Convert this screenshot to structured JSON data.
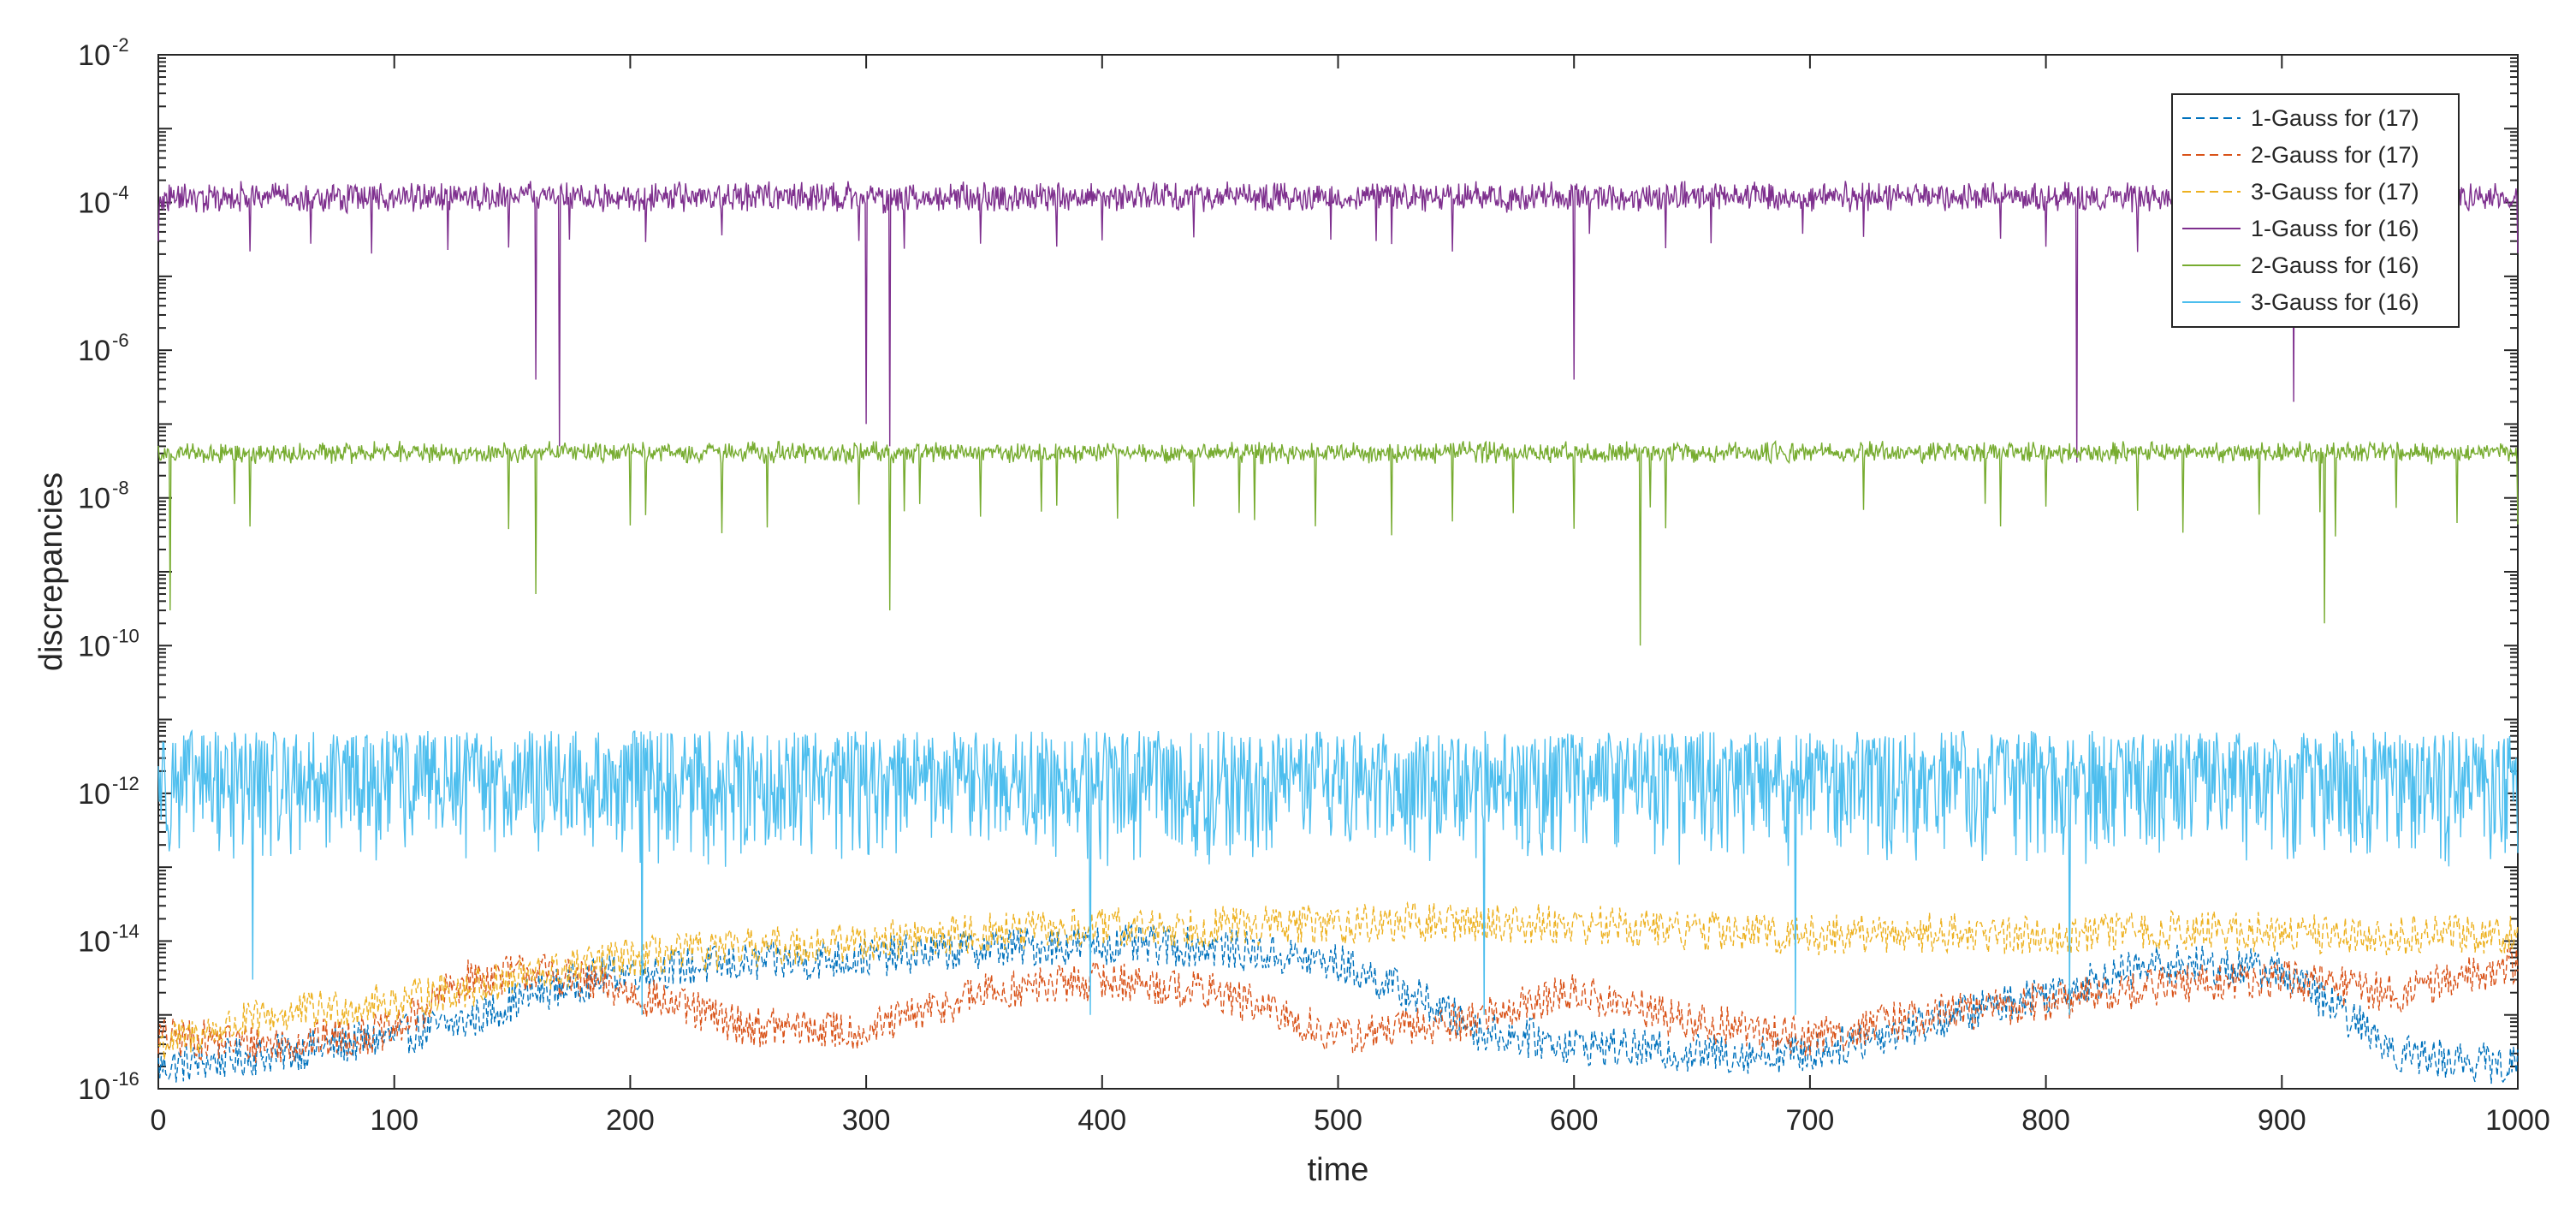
{
  "chart_data": {
    "type": "line",
    "title": "",
    "xlabel": "time",
    "ylabel": "discrepancies",
    "xlim": [
      0,
      1000
    ],
    "ylim": [
      1e-16,
      0.01
    ],
    "yscale": "log",
    "grid": false,
    "legend_position": "top-right",
    "x_ticks": [
      0,
      100,
      200,
      300,
      400,
      500,
      600,
      700,
      800,
      900,
      1000
    ],
    "x_tick_labels": [
      "0",
      "100",
      "200",
      "300",
      "400",
      "500",
      "600",
      "700",
      "800",
      "900",
      "1000"
    ],
    "y_ticks": [
      1e-16,
      1e-14,
      1e-12,
      1e-10,
      1e-08,
      1e-06,
      0.0001,
      0.01
    ],
    "y_tick_labels": [
      {
        "base": "10",
        "exp": "-16"
      },
      {
        "base": "10",
        "exp": "-14"
      },
      {
        "base": "10",
        "exp": "-12"
      },
      {
        "base": "10",
        "exp": "-10"
      },
      {
        "base": "10",
        "exp": "-8"
      },
      {
        "base": "10",
        "exp": "-6"
      },
      {
        "base": "10",
        "exp": "-4"
      },
      {
        "base": "10",
        "exp": "-2"
      }
    ],
    "series": [
      {
        "name": "1-Gauss for (17)",
        "color": "#0072BD",
        "dash": "dashed",
        "x": [
          0,
          50,
          100,
          130,
          160,
          200,
          250,
          300,
          350,
          400,
          450,
          500,
          530,
          560,
          600,
          650,
          700,
          750,
          800,
          850,
          900,
          950,
          1000
        ],
        "y": [
          2e-16,
          3e-16,
          5e-16,
          8e-16,
          2e-15,
          4e-15,
          5e-15,
          6e-15,
          8e-15,
          9e-15,
          8e-15,
          5e-15,
          2e-15,
          6e-16,
          4e-16,
          3e-16,
          3e-16,
          8e-16,
          2e-15,
          5e-15,
          4e-15,
          3e-16,
          2e-16
        ]
      },
      {
        "name": "2-Gauss for (17)",
        "color": "#D95319",
        "dash": "dashed",
        "x": [
          0,
          50,
          100,
          130,
          160,
          200,
          250,
          300,
          350,
          400,
          450,
          500,
          550,
          600,
          650,
          700,
          750,
          800,
          850,
          900,
          950,
          1000
        ],
        "y": [
          5e-16,
          4e-16,
          6e-16,
          3e-15,
          4e-15,
          2e-15,
          7e-16,
          6e-16,
          2e-15,
          3e-15,
          2e-15,
          5e-16,
          8e-16,
          2e-15,
          8e-16,
          5e-16,
          1e-15,
          1.5e-15,
          2.5e-15,
          3e-15,
          2e-15,
          5e-15
        ]
      },
      {
        "name": "3-Gauss for (17)",
        "color": "#EDB120",
        "dash": "dashed",
        "x": [
          0,
          50,
          100,
          150,
          200,
          250,
          300,
          350,
          400,
          450,
          500,
          550,
          600,
          650,
          700,
          750,
          800,
          850,
          900,
          950,
          1000
        ],
        "y": [
          4e-16,
          1e-15,
          1.5e-15,
          3e-15,
          6e-15,
          8e-15,
          1e-14,
          1.3e-14,
          1.5e-14,
          1.6e-14,
          1.7e-14,
          1.8e-14,
          1.7e-14,
          1.4e-14,
          1.2e-14,
          1.3e-14,
          1.2e-14,
          1.4e-14,
          1.3e-14,
          1.2e-14,
          1.3e-14
        ]
      },
      {
        "name": "1-Gauss for (16)",
        "color": "#7E2F8E",
        "dash": "solid",
        "x": [
          0,
          100,
          200,
          300,
          400,
          500,
          600,
          700,
          800,
          900,
          1000
        ],
        "y": [
          0.0001,
          0.0001,
          0.0001,
          0.0001,
          0.0001,
          0.0001,
          0.0001,
          0.0001,
          0.0001,
          0.0001,
          0.0001
        ],
        "range": [
          2e-05,
          0.0002
        ],
        "dips": [
          {
            "x": 170,
            "y": 5e-08
          },
          {
            "x": 310,
            "y": 5e-08
          },
          {
            "x": 813,
            "y": 3e-08
          },
          {
            "x": 160,
            "y": 4e-07
          },
          {
            "x": 300,
            "y": 1e-07
          },
          {
            "x": 600,
            "y": 4e-07
          },
          {
            "x": 905,
            "y": 2e-07
          }
        ]
      },
      {
        "name": "2-Gauss for (16)",
        "color": "#77AC30",
        "dash": "solid",
        "x": [
          0,
          100,
          200,
          300,
          400,
          500,
          600,
          700,
          800,
          900,
          1000
        ],
        "y": [
          4e-08,
          4e-08,
          4e-08,
          4e-08,
          4e-08,
          4e-08,
          4e-08,
          4e-08,
          4e-08,
          4e-08,
          4e-08
        ],
        "range": [
          3e-09,
          6e-08
        ],
        "dips": [
          {
            "x": 628,
            "y": 1e-10
          },
          {
            "x": 310,
            "y": 3e-10
          },
          {
            "x": 918,
            "y": 2e-10
          },
          {
            "x": 5,
            "y": 3e-10
          },
          {
            "x": 160,
            "y": 5e-10
          }
        ]
      },
      {
        "name": "3-Gauss for (16)",
        "color": "#4DBEEE",
        "dash": "solid",
        "x": [
          0,
          100,
          200,
          300,
          400,
          500,
          600,
          700,
          800,
          900,
          1000
        ],
        "y": [
          3e-12,
          3e-12,
          3e-12,
          3e-12,
          3e-12,
          3e-12,
          3e-12,
          3e-12,
          3e-12,
          3e-12,
          3e-12
        ],
        "range": [
          1e-13,
          7e-12
        ],
        "dips": [
          {
            "x": 40,
            "y": 3e-15
          },
          {
            "x": 205,
            "y": 1e-15
          },
          {
            "x": 395,
            "y": 1e-15
          },
          {
            "x": 562,
            "y": 1e-15
          },
          {
            "x": 694,
            "y": 1e-15
          },
          {
            "x": 810,
            "y": 1e-15
          }
        ]
      }
    ]
  }
}
